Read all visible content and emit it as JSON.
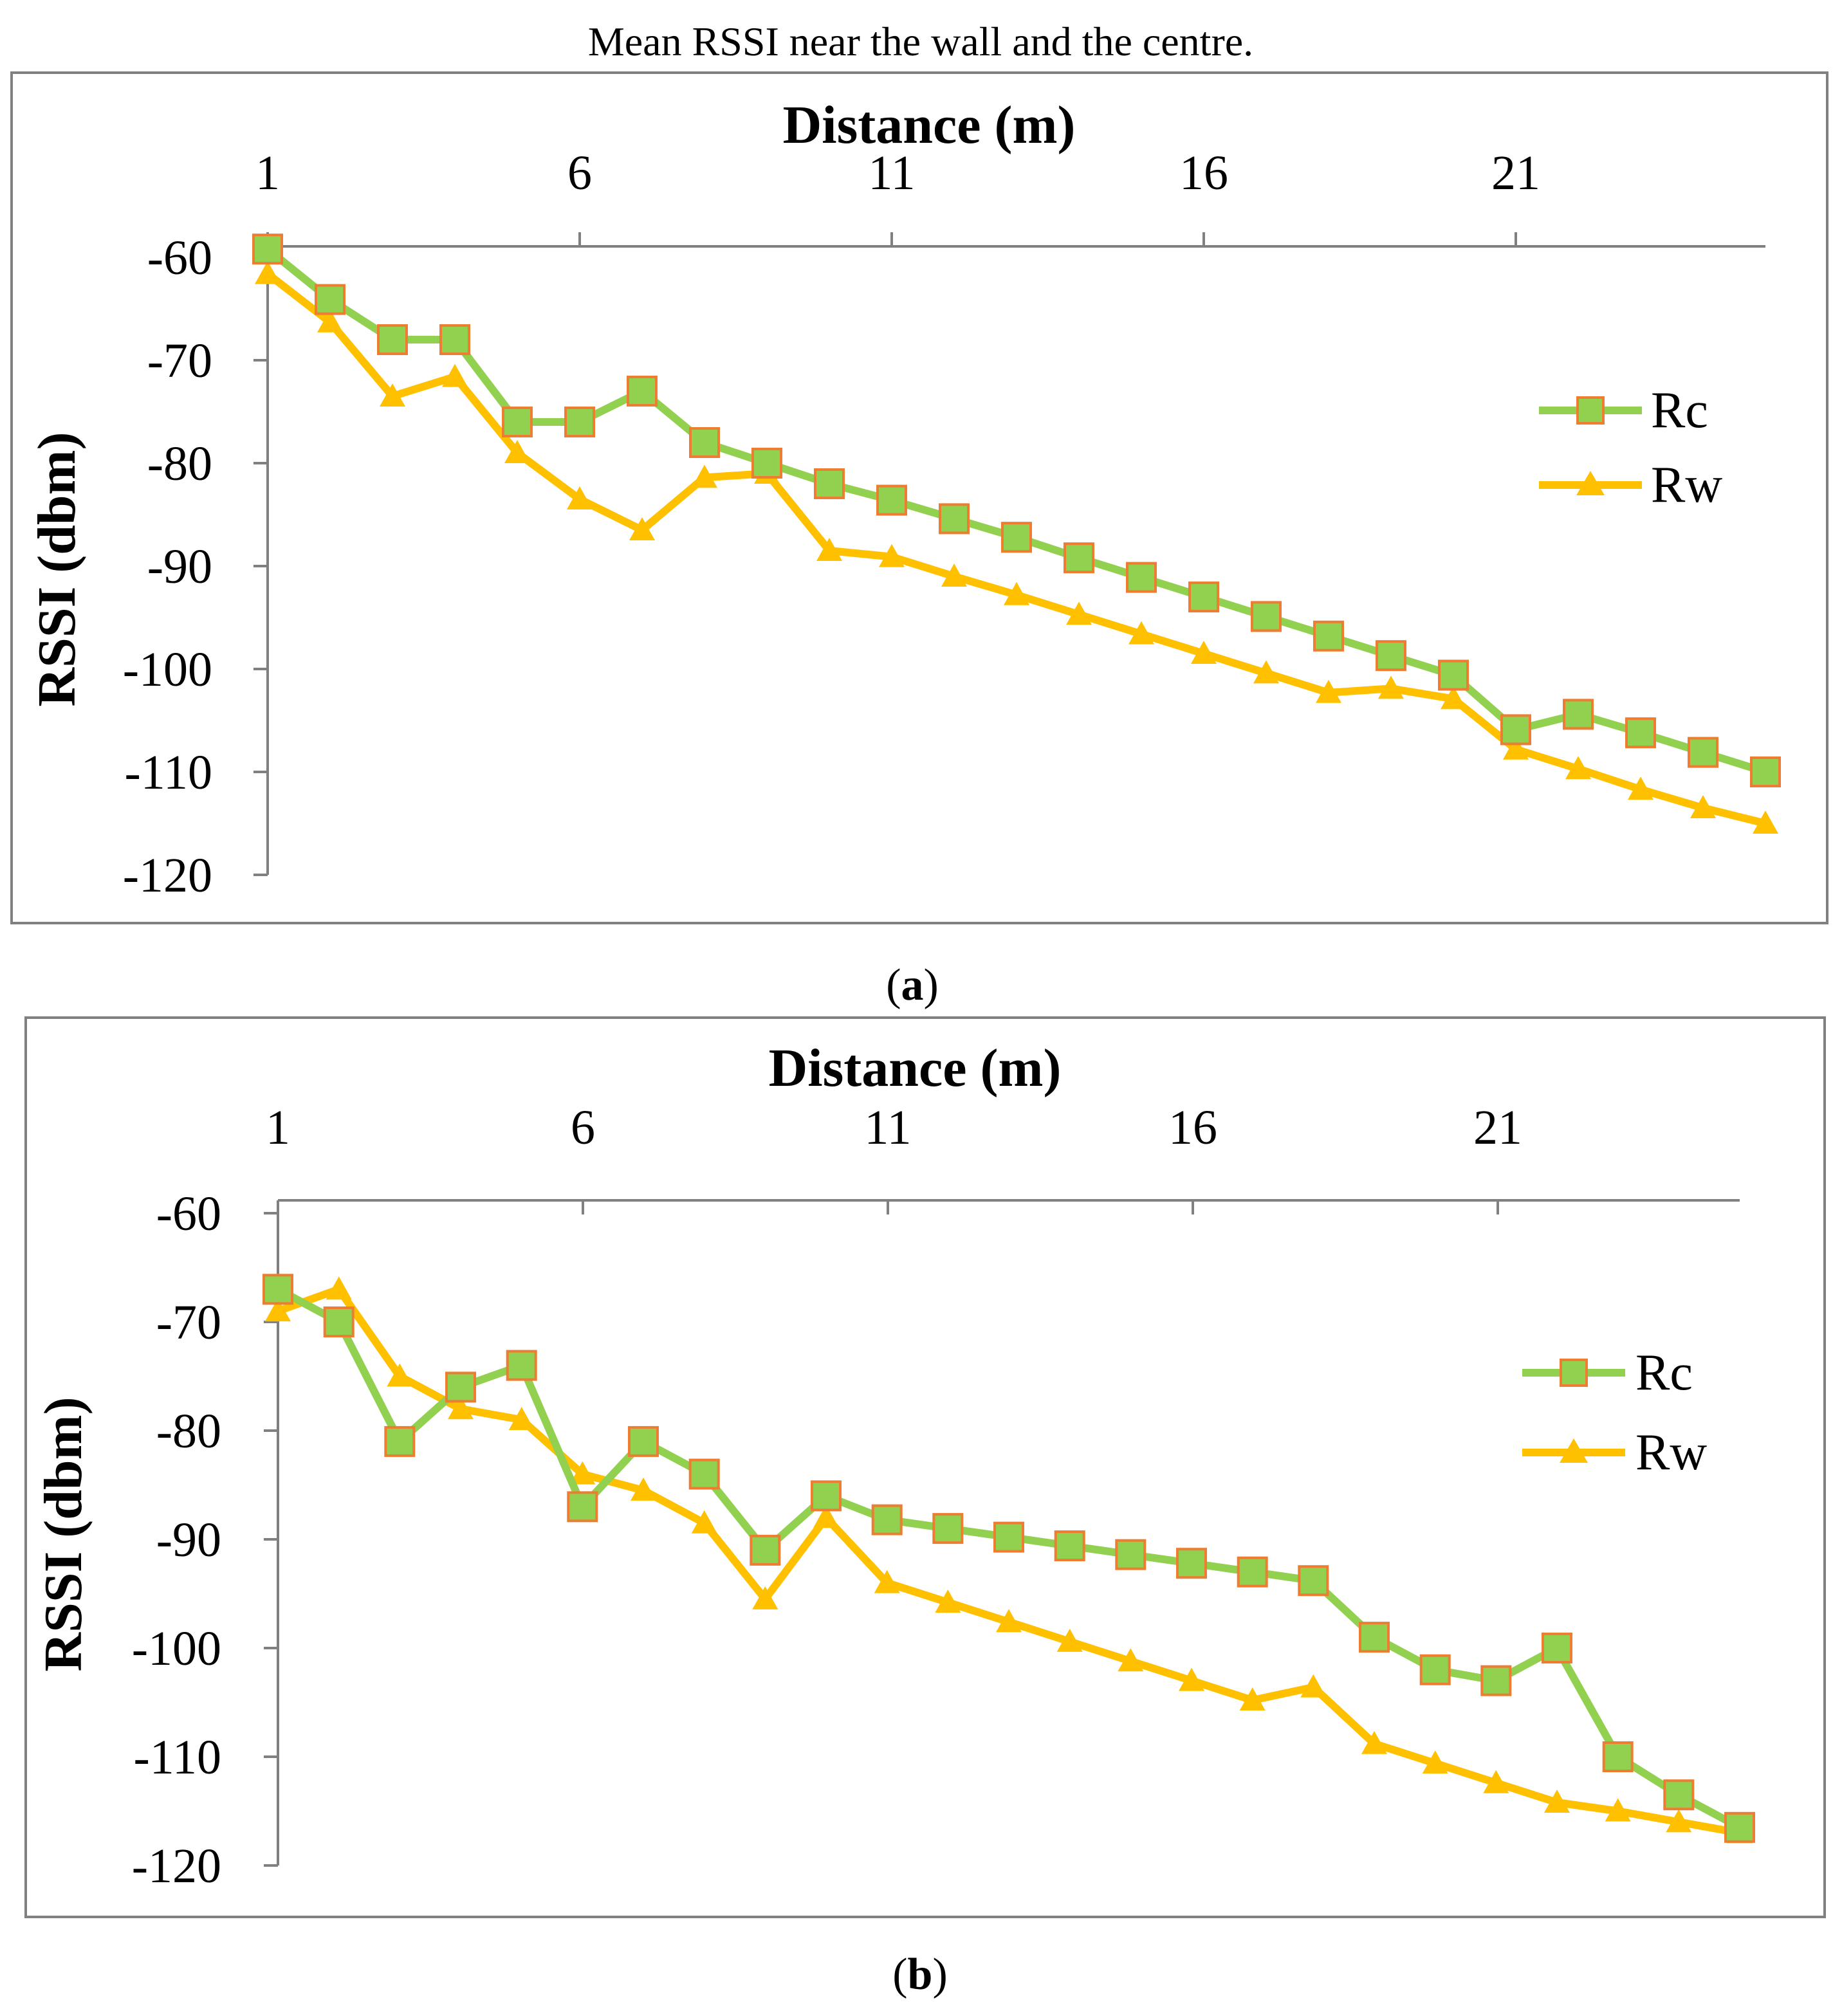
{
  "page_title": "Mean RSSI near the wall and the centre.",
  "colors": {
    "rc_line": "#92D050",
    "rc_marker_fill": "#92D050",
    "rc_marker_stroke": "#ED7D31",
    "rw_line": "#FFC000",
    "frame": "#808080",
    "axis": "#808080"
  },
  "chart_data": [
    {
      "type": "line",
      "panel_label": "(a)",
      "panel_label_open": "(",
      "panel_label_letter": "a",
      "panel_label_close": ")",
      "xlabel": "Distance (m)",
      "ylabel": "RSSI (dbm)",
      "x_axis_position": "top",
      "xlim": [
        1,
        25
      ],
      "ylim": [
        -120,
        -60
      ],
      "x_ticks": [
        1,
        6,
        11,
        16,
        21
      ],
      "y_ticks": [
        -60,
        -70,
        -80,
        -90,
        -100,
        -110,
        -120
      ],
      "legend": {
        "position": "right",
        "entries": [
          "Rc",
          "Rw"
        ]
      },
      "x": [
        1,
        2,
        3,
        4,
        5,
        6,
        7,
        8,
        9,
        10,
        11,
        12,
        13,
        14,
        15,
        16,
        17,
        18,
        19,
        20,
        21,
        22,
        23,
        24,
        25
      ],
      "series": [
        {
          "name": "Rc",
          "marker": "square",
          "values": [
            -59.2,
            -64.1,
            -68,
            -68,
            -76,
            -76,
            -73,
            -78,
            -80,
            -82,
            -83.6,
            -85.4,
            -87.2,
            -89.2,
            -91.1,
            -93,
            -94.9,
            -96.8,
            -98.7,
            -100.6,
            -105.9,
            -104.4,
            -106.2,
            -108.1,
            -110
          ]
        },
        {
          "name": "Rw",
          "marker": "triangle",
          "values": [
            -61.6,
            -66.3,
            -73.5,
            -71.6,
            -79,
            -83.5,
            -86.5,
            -81.4,
            -81,
            -88.5,
            -89.1,
            -91,
            -92.8,
            -94.7,
            -96.6,
            -98.5,
            -100.4,
            -102.3,
            -101.9,
            -102.9,
            -107.8,
            -109.7,
            -111.7,
            -113.5,
            -115
          ]
        }
      ]
    },
    {
      "type": "line",
      "panel_label": "(b)",
      "panel_label_open": "(",
      "panel_label_letter": "b",
      "panel_label_close": ")",
      "xlabel": "Distance (m)",
      "ylabel": "RSSI (dbm)",
      "x_axis_position": "top",
      "xlim": [
        1,
        25
      ],
      "ylim": [
        -120,
        -60
      ],
      "x_ticks": [
        1,
        6,
        11,
        16,
        21
      ],
      "y_ticks": [
        -60,
        -70,
        -80,
        -90,
        -100,
        -110,
        -120
      ],
      "legend": {
        "position": "right",
        "entries": [
          "Rc",
          "Rw"
        ]
      },
      "x": [
        1,
        2,
        3,
        4,
        5,
        6,
        7,
        8,
        9,
        10,
        11,
        12,
        13,
        14,
        15,
        16,
        17,
        18,
        19,
        20,
        21,
        22,
        23,
        24,
        25
      ],
      "series": [
        {
          "name": "Rc",
          "marker": "square",
          "values": [
            -67,
            -70,
            -81,
            -76,
            -74,
            -87,
            -81,
            -84,
            -91,
            -86,
            -88.2,
            -89,
            -89.8,
            -90.6,
            -91.4,
            -92.2,
            -93,
            -93.8,
            -99,
            -102,
            -103,
            -100,
            -110,
            -113.5,
            -116.5
          ]
        },
        {
          "name": "Rw",
          "marker": "triangle",
          "values": [
            -69,
            -67,
            -75,
            -78,
            -79,
            -84,
            -85.5,
            -88.5,
            -95.5,
            -88,
            -94,
            -95.8,
            -97.6,
            -99.4,
            -101.2,
            -103,
            -104.8,
            -103.6,
            -108.8,
            -110.6,
            -112.4,
            -114.2,
            -115,
            -116,
            -117
          ]
        }
      ]
    }
  ]
}
